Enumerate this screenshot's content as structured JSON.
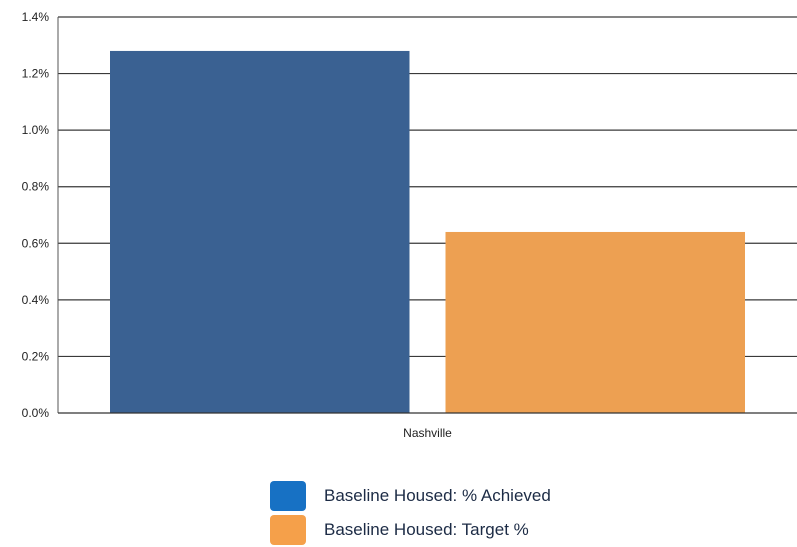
{
  "chart_data": {
    "type": "bar",
    "title": "",
    "xlabel": "",
    "ylabel": "",
    "categories": [
      "Nashville"
    ],
    "ylim": [
      0,
      0.014
    ],
    "yticks": [
      0,
      0.002,
      0.004,
      0.006,
      0.008,
      0.01,
      0.012,
      0.014
    ],
    "ytick_labels": [
      "0.0%",
      "0.2%",
      "0.4%",
      "0.6%",
      "0.8%",
      "1.0%",
      "1.2%",
      "1.4%"
    ],
    "grid": true,
    "legend_position": "bottom",
    "series": [
      {
        "name": "Baseline Housed: % Achieved",
        "values": [
          0.0128
        ],
        "color": "#3a6192"
      },
      {
        "name": "Baseline Housed: Target %",
        "values": [
          0.0064
        ],
        "color": "#eda052"
      }
    ]
  },
  "legend": {
    "items": [
      {
        "label": "Baseline Housed: % Achieved",
        "color": "#1771c4"
      },
      {
        "label": "Baseline Housed: Target %",
        "color": "#f5a04a"
      }
    ]
  }
}
